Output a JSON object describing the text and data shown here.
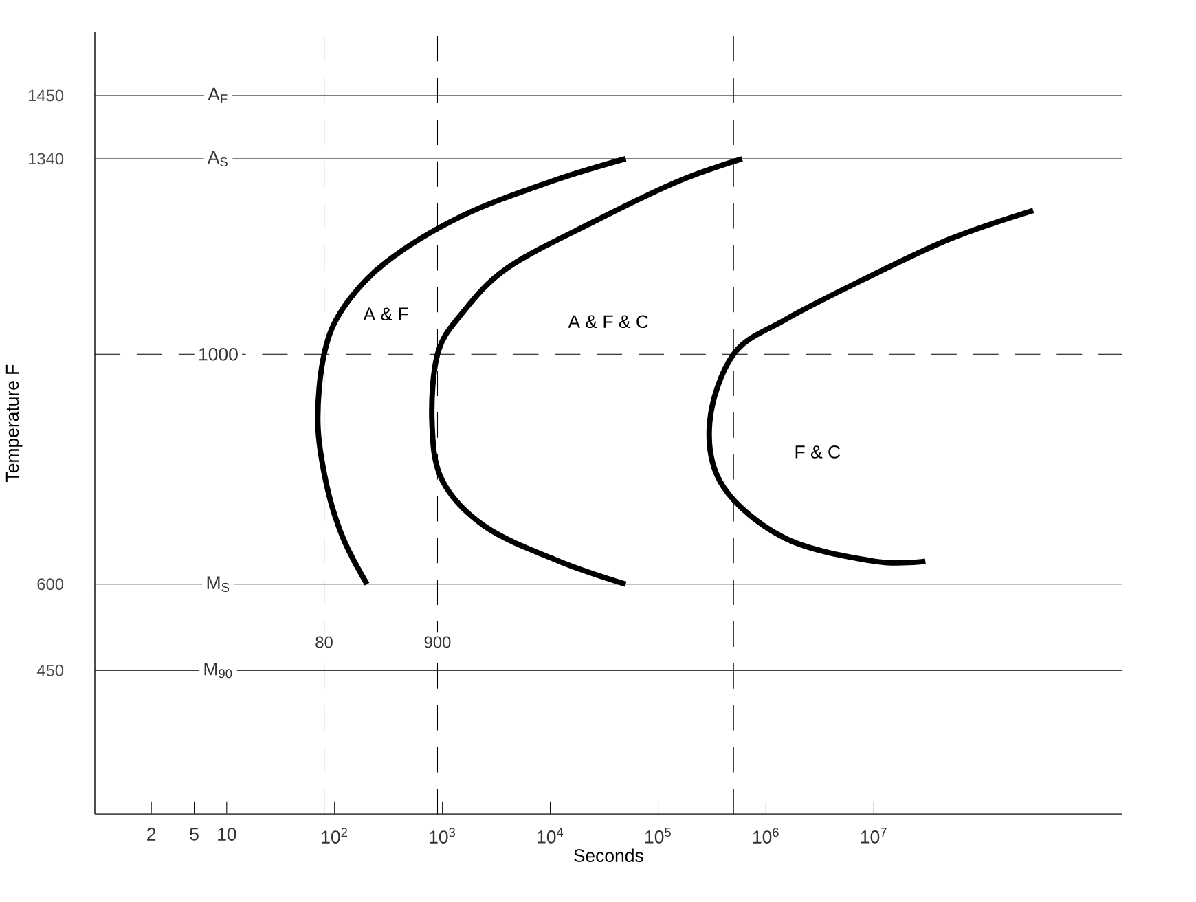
{
  "chart_data": {
    "type": "line",
    "xlabel": "Seconds",
    "ylabel": "Temperature F",
    "log": "x",
    "grid": false,
    "marker": "none",
    "line_style": "solid",
    "xlim": [
      0.6,
      2000000000
    ],
    "ylim": [
      200,
      1560
    ],
    "xticks": [
      2,
      5,
      10,
      {
        "value": 100,
        "label": "10$^{2}$"
      },
      {
        "value": 1000,
        "label": "10$^{3}$"
      },
      {
        "value": 10000,
        "label": "10$^{4}$"
      },
      {
        "value": 100000,
        "label": "10$^{5}$"
      },
      {
        "value": 1000000,
        "label": "10$^{6}$"
      },
      {
        "value": 10000000,
        "label": "10$^{7}$"
      }
    ],
    "yticks": [
      1450,
      1340,
      600,
      450
    ],
    "series": [
      {
        "color": "#000000",
        "x": [
          50000,
          10000,
          1500,
          300,
          120,
          80,
          70,
          85,
          120,
          200
        ],
        "values": [
          1340,
          1300,
          1240,
          1160,
          1080,
          1000,
          880,
          770,
          680,
          600
        ]
      },
      {
        "color": "#000000",
        "x": [
          600000,
          150000,
          25000,
          4000,
          1500,
          900,
          800,
          1000,
          2500,
          12000,
          50000
        ],
        "values": [
          1340,
          1300,
          1230,
          1150,
          1070,
          1000,
          880,
          780,
          700,
          640,
          600
        ]
      },
      {
        "color": "#000000",
        "x": [
          300000000,
          50000000,
          8000000,
          1500000,
          500000,
          300000,
          400000,
          1500000,
          10000000,
          30000000
        ],
        "values": [
          1250,
          1200,
          1130,
          1060,
          1000,
          880,
          770,
          680,
          640,
          640
        ]
      }
    ],
    "ref_lines": [
      {
        "axis": "y",
        "value": 1450,
        "label": "A$_{F}$",
        "color": "#000000",
        "line_style": "solid"
      },
      {
        "axis": "y",
        "value": 1340,
        "label": "A$_{S}$",
        "color": "#000000",
        "line_style": "solid"
      },
      {
        "axis": "y",
        "value": 1000,
        "label": "1000",
        "color": "#000000",
        "line_style": "dashed"
      },
      {
        "axis": "y",
        "value": 600,
        "label": "M$_{S}$",
        "color": "#000000",
        "line_style": "solid"
      },
      {
        "axis": "y",
        "value": 450,
        "label": "M$_{90}$",
        "color": "#000000",
        "line_style": "solid"
      },
      {
        "axis": "x",
        "value": 80,
        "label": "80",
        "color": "#000000",
        "line_style": "dashed"
      },
      {
        "axis": "x",
        "value": 900,
        "label": "900",
        "color": "#000000",
        "line_style": "dashed"
      },
      {
        "axis": "x",
        "value": 500000,
        "label": null,
        "color": "#000000",
        "line_style": "dashed"
      }
    ],
    "annotations": [
      {
        "text": "A & F",
        "x": 300,
        "y": 1070
      },
      "A & F & C",
      {
        "text": "F & C",
        "x": 3000000,
        "y": 830
      }
    ]
  }
}
